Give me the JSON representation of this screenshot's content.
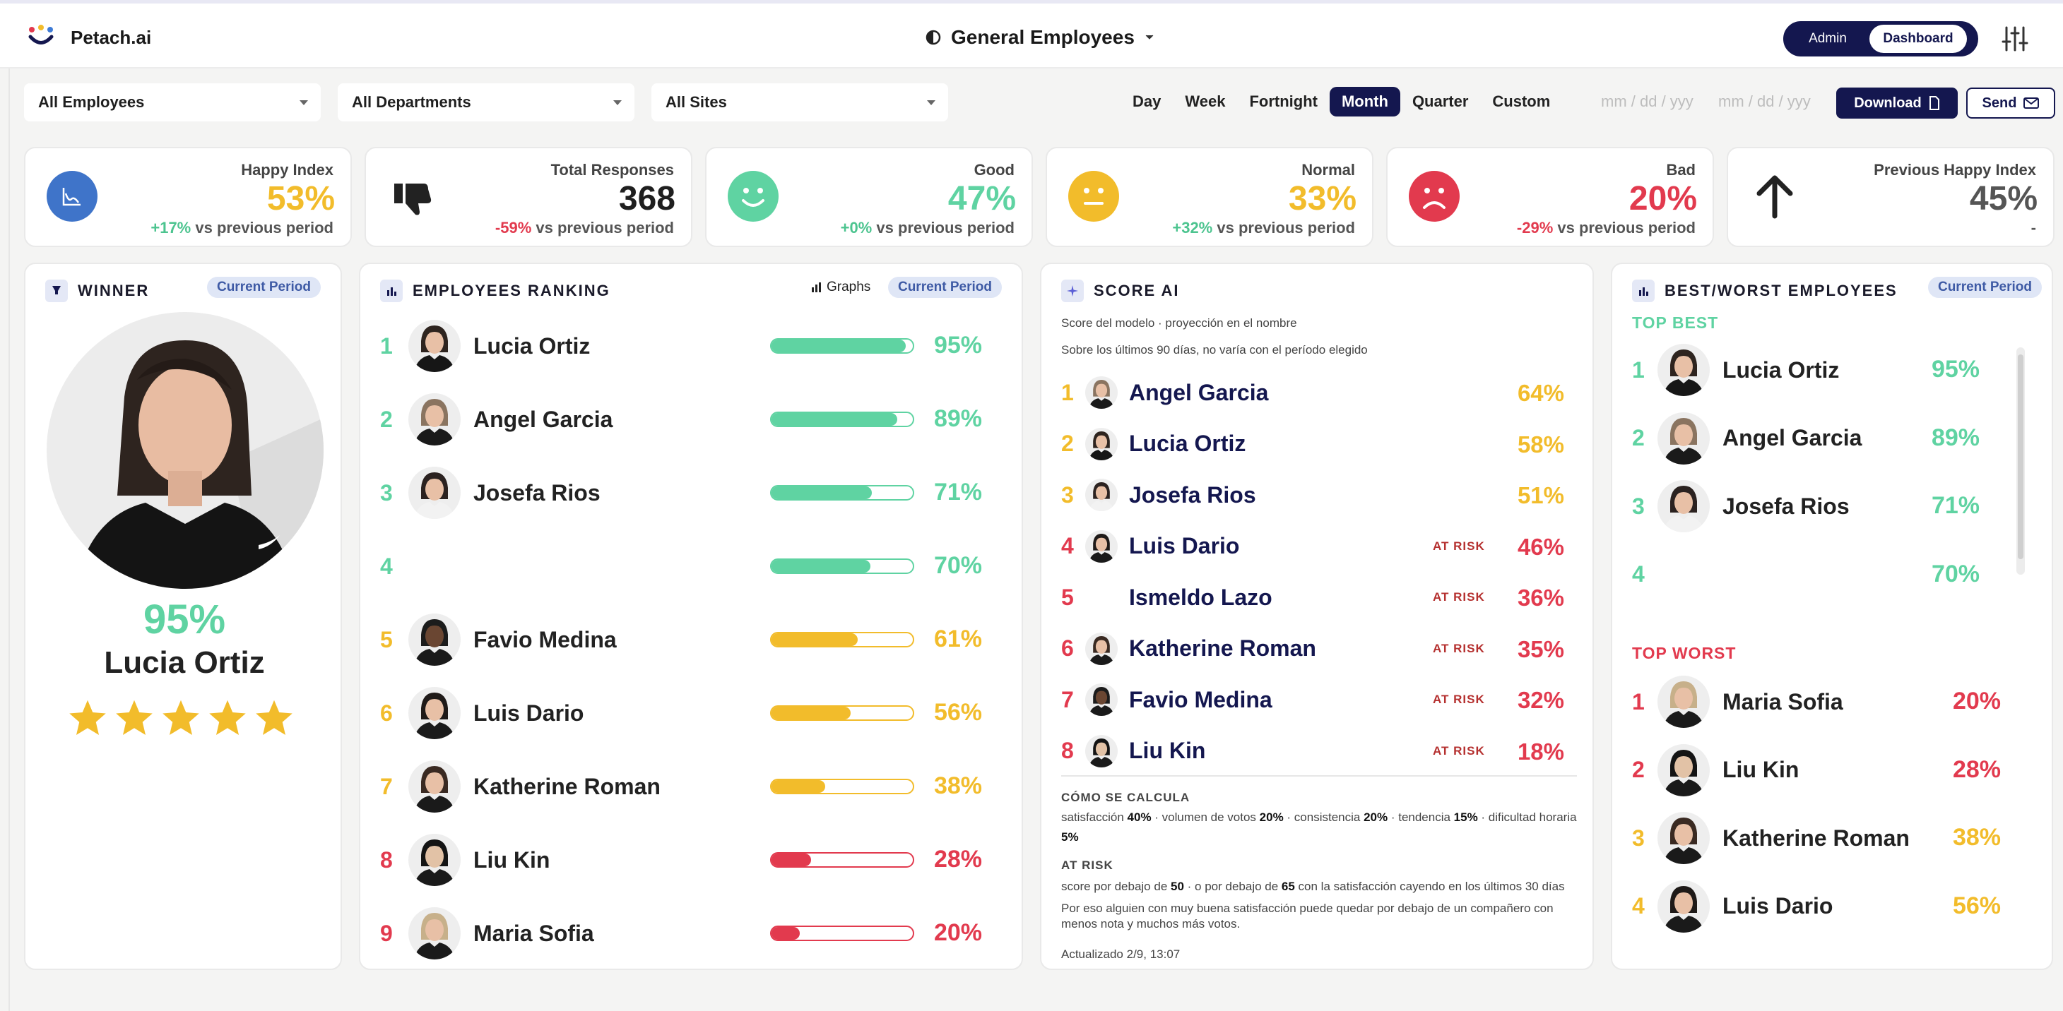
{
  "header": {
    "brand": "Petach.ai",
    "title": "General Employees",
    "segments": {
      "admin": "Admin",
      "dashboard": "Dashboard"
    }
  },
  "filters": {
    "employees": "All Employees",
    "departments": "All Departments",
    "sites": "All Sites"
  },
  "periods": [
    "Day",
    "Week",
    "Fortnight",
    "Month",
    "Quarter",
    "Custom"
  ],
  "active_period": "Month",
  "date_placeholders": [
    "mm / dd / yyy",
    "mm / dd / yyy"
  ],
  "actions": {
    "download": "Download",
    "send": "Send"
  },
  "kpis": [
    {
      "label": "Happy Index",
      "value": "53%",
      "delta": "+17%",
      "suffix": "vs previous period",
      "color": "#f2bc2b",
      "delta_color": "#4cc48f"
    },
    {
      "label": "Total Responses",
      "value": "368",
      "delta": "-59%",
      "suffix": "vs previous period",
      "color": "#1f1f1f",
      "delta_color": "#e23a4e"
    },
    {
      "label": "Good",
      "value": "47%",
      "delta": "+0%",
      "suffix": "vs previous period",
      "color": "#5fd3a2",
      "delta_color": "#4cc48f"
    },
    {
      "label": "Normal",
      "value": "33%",
      "delta": "+32%",
      "suffix": "vs previous period",
      "color": "#f2bc2b",
      "delta_color": "#4cc48f"
    },
    {
      "label": "Bad",
      "value": "20%",
      "delta": "-29%",
      "suffix": "vs previous period",
      "color": "#e23a4e",
      "delta_color": "#e23a4e"
    },
    {
      "label": "Previous Happy Index",
      "value": "45%",
      "delta": "-",
      "suffix": "",
      "color": "#555555",
      "delta_color": "#555555"
    }
  ],
  "winner": {
    "title": "WINNER",
    "pill": "Current Period",
    "pct": "95%",
    "name": "Lucia Ortiz",
    "stars": 5
  },
  "ranking": {
    "title": "EMPLOYEES RANKING",
    "graphs": "Graphs",
    "pill": "Current Period",
    "rows": [
      {
        "rank": "1",
        "name": "Lucia Ortiz",
        "pct": "95%",
        "value": 95,
        "level": "good"
      },
      {
        "rank": "2",
        "name": "Angel Garcia",
        "pct": "89%",
        "value": 89,
        "level": "good"
      },
      {
        "rank": "3",
        "name": "Josefa Rios",
        "pct": "71%",
        "value": 71,
        "level": "good"
      },
      {
        "rank": "4",
        "name": "",
        "pct": "70%",
        "value": 70,
        "level": "good"
      },
      {
        "rank": "5",
        "name": "Favio Medina",
        "pct": "61%",
        "value": 61,
        "level": "normal"
      },
      {
        "rank": "6",
        "name": "Luis Dario",
        "pct": "56%",
        "value": 56,
        "level": "normal"
      },
      {
        "rank": "7",
        "name": "Katherine Roman",
        "pct": "38%",
        "value": 38,
        "level": "normal"
      },
      {
        "rank": "8",
        "name": "Liu Kin",
        "pct": "28%",
        "value": 28,
        "level": "bad"
      },
      {
        "rank": "9",
        "name": "Maria Sofia",
        "pct": "20%",
        "value": 20,
        "level": "bad"
      }
    ]
  },
  "score_ai": {
    "title": "SCORE AI",
    "sub1": "Score del modelo · proyección en el nombre",
    "sub2": "Sobre los últimos 90 días, no varía con el período elegido",
    "rows": [
      {
        "rank": "1",
        "name": "Angel Garcia",
        "pct": "64%",
        "risk": ""
      },
      {
        "rank": "2",
        "name": "Lucia Ortiz",
        "pct": "58%",
        "risk": ""
      },
      {
        "rank": "3",
        "name": "Josefa Rios",
        "pct": "51%",
        "risk": ""
      },
      {
        "rank": "4",
        "name": "Luis Dario",
        "pct": "46%",
        "risk": "AT RISK"
      },
      {
        "rank": "5",
        "name": "Ismeldo Lazo",
        "pct": "36%",
        "risk": "AT RISK"
      },
      {
        "rank": "6",
        "name": "Katherine Roman",
        "pct": "35%",
        "risk": "AT RISK"
      },
      {
        "rank": "7",
        "name": "Favio Medina",
        "pct": "32%",
        "risk": "AT RISK"
      },
      {
        "rank": "8",
        "name": "Liu Kin",
        "pct": "18%",
        "risk": "AT RISK"
      }
    ],
    "how_title": "CÓMO SE CALCULA",
    "how_text": "satisfacción 40% · volumen de votos 20% · consistencia 20% · tendencia 15% · dificultad horaria 5%",
    "risk_title": "AT RISK",
    "risk_text1": "score por debajo de 50 · o por debajo de 65 con la satisfacción cayendo en los últimos 30 días",
    "risk_text2": "Por eso alguien con muy buena satisfacción puede quedar por debajo de un compañero con menos nota y muchos más votos.",
    "updated": "Actualizado 2/9, 13:07"
  },
  "best_worst": {
    "title": "BEST/WORST EMPLOYEES",
    "pill": "Current Period",
    "best_title": "TOP BEST",
    "worst_title": "TOP WORST",
    "best": [
      {
        "rank": "1",
        "name": "Lucia Ortiz",
        "pct": "95%"
      },
      {
        "rank": "2",
        "name": "Angel Garcia",
        "pct": "89%"
      },
      {
        "rank": "3",
        "name": "Josefa Rios",
        "pct": "71%"
      },
      {
        "rank": "4",
        "name": "",
        "pct": "70%"
      }
    ],
    "worst": [
      {
        "rank": "1",
        "name": "Maria Sofia",
        "pct": "20%",
        "level": "bad"
      },
      {
        "rank": "2",
        "name": "Liu Kin",
        "pct": "28%",
        "level": "bad"
      },
      {
        "rank": "3",
        "name": "Katherine Roman",
        "pct": "38%",
        "level": "normal"
      },
      {
        "rank": "4",
        "name": "Luis Dario",
        "pct": "56%",
        "level": "normal"
      }
    ]
  },
  "colors": {
    "good": "#5fd3a2",
    "normal": "#f2bc2b",
    "bad": "#e23a4e",
    "navy": "#14174f"
  }
}
